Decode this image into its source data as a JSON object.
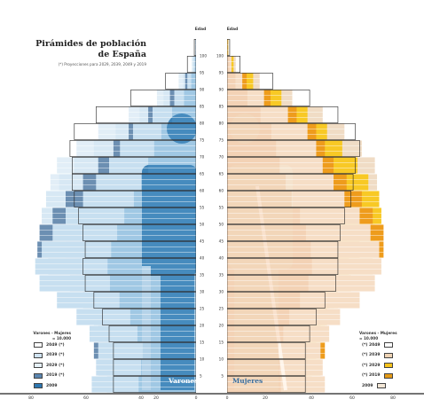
{
  "title": "Pirámides de población de España",
  "subtitle": "(*) Proyecciones para 2029, 2039, 2049 y 2019",
  "age_axis_title": "Edad",
  "units_note": "Varones - Mujeres = 10.000",
  "labels": {
    "male": "Varones",
    "female": "Mujeres"
  },
  "age_ticks": [
    100,
    95,
    90,
    85,
    80,
    75,
    70,
    65,
    60,
    55,
    50,
    45,
    40,
    35,
    30,
    25,
    20,
    15,
    10,
    5
  ],
  "x_ticks_left": [
    "80",
    "60",
    "40",
    "20",
    "0"
  ],
  "x_ticks_right": [
    "0",
    "20",
    "40",
    "60",
    "80"
  ],
  "legend_left": [
    {
      "year": "2049 (*)",
      "color": "#ffffff"
    },
    {
      "year": "2039 (*)",
      "color": "#cfe3f1"
    },
    {
      "year": "2029 (*)",
      "color": "#e6f1f8"
    },
    {
      "year": "2019 (*)",
      "color": "#5b86b0"
    },
    {
      "year": "2009",
      "color": "#2e77b0"
    }
  ],
  "legend_right": [
    {
      "year": "(*) 2049",
      "color": "#ffffff"
    },
    {
      "year": "(*) 2039",
      "color": "#eed3b4"
    },
    {
      "year": "(*) 2029",
      "color": "#f6c31c"
    },
    {
      "year": "(*) 2019",
      "color": "#e49a17"
    },
    {
      "year": "2009",
      "color": "#f3e7d7"
    }
  ],
  "colors": {
    "male_2009": "#5a9fce",
    "male_2009_light": "#c7dff0",
    "female_2009": "#eebe95",
    "female_2009_light": "#f6dec6",
    "male_2019": "#6c8fb2",
    "female_2019": "#ee9c1c",
    "male_2029": "#d7e8f4",
    "female_2029": "#f8c925",
    "male_2039": "#e2eef7",
    "female_2039": "#f0dcc5",
    "outline_2049": "#222222",
    "silhouette_male": "#3c82b6",
    "silhouette_female": "#f5e3cd"
  },
  "chart_data": {
    "type": "pyramid",
    "age_groups": [
      "0-4",
      "5-9",
      "10-14",
      "15-19",
      "20-24",
      "25-29",
      "30-34",
      "35-39",
      "40-44",
      "45-49",
      "50-54",
      "55-59",
      "60-64",
      "65-69",
      "70-74",
      "75-79",
      "80-84",
      "85-89",
      "90-94",
      "95-99",
      "100+"
    ],
    "x_unit": "thousands",
    "xlim": [
      -80,
      80
    ],
    "series": [
      {
        "name": "2009",
        "male": [
          48,
          46,
          45,
          49,
          55,
          64,
          72,
          74,
          71,
          66,
          60,
          52,
          46,
          40,
          35,
          29,
          20,
          10,
          4,
          1,
          0.1
        ],
        "female": [
          45,
          44,
          43,
          47,
          52,
          61,
          68,
          71,
          70,
          66,
          61,
          54,
          49,
          44,
          41,
          37,
          28,
          17,
          7,
          2,
          0.2
        ]
      },
      {
        "name": "2019",
        "male": [
          41,
          45,
          47,
          45,
          47,
          52,
          58,
          68,
          73,
          72,
          66,
          60,
          52,
          45,
          38,
          31,
          22,
          12,
          5,
          1,
          0.2
        ],
        "female": [
          39,
          43,
          45,
          43,
          46,
          51,
          57,
          67,
          72,
          72,
          67,
          62,
          55,
          49,
          45,
          41,
          32,
          20,
          9,
          2,
          0.3
        ]
      },
      {
        "name": "2029",
        "male": [
          36,
          39,
          43,
          47,
          47,
          47,
          49,
          55,
          60,
          68,
          71,
          69,
          63,
          56,
          47,
          37,
          26,
          15,
          6,
          1.5,
          0.3
        ],
        "female": [
          34,
          37,
          41,
          45,
          46,
          47,
          50,
          56,
          61,
          68,
          71,
          70,
          65,
          60,
          53,
          46,
          37,
          25,
          12,
          3,
          0.5
        ]
      },
      {
        "name": "2039",
        "male": [
          36,
          37,
          39,
          41,
          45,
          49,
          51,
          50,
          51,
          53,
          57,
          63,
          67,
          64,
          55,
          45,
          31,
          18,
          8,
          2,
          0.5
        ],
        "female": [
          34,
          35,
          37,
          39,
          44,
          49,
          51,
          51,
          52,
          55,
          59,
          64,
          69,
          68,
          62,
          54,
          44,
          30,
          15,
          4,
          0.7
        ]
      },
      {
        "name": "2049",
        "male": [
          38,
          38,
          38,
          40,
          43,
          47,
          51,
          52,
          51,
          52,
          54,
          56,
          57,
          57,
          58,
          56,
          46,
          30,
          14,
          4,
          0.8
        ],
        "female": [
          36,
          36,
          36,
          38,
          41,
          45,
          50,
          51,
          51,
          52,
          54,
          57,
          58,
          59,
          61,
          59,
          51,
          38,
          21,
          6,
          1.2
        ]
      }
    ]
  }
}
